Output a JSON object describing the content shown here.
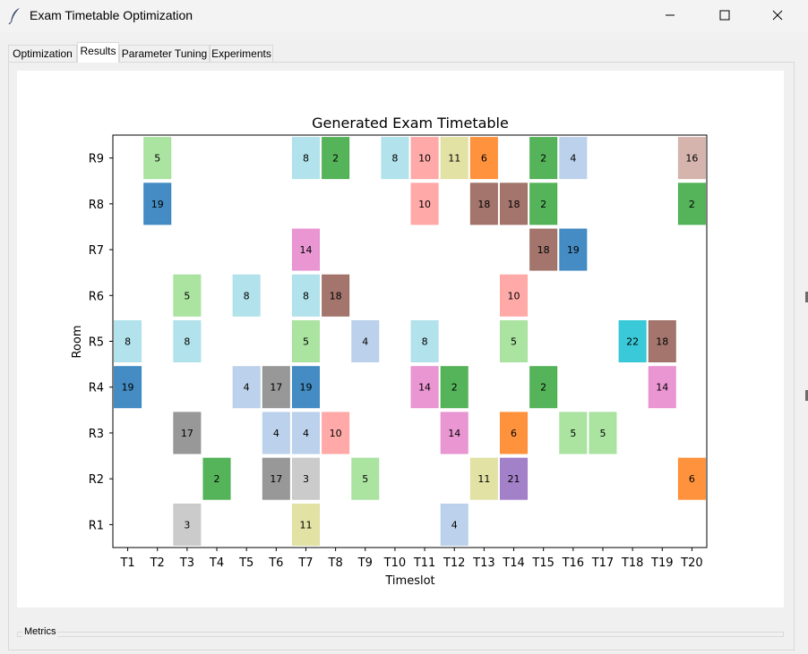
{
  "window": {
    "title": "Exam Timetable Optimization",
    "icon": "feather-icon",
    "controls": [
      "minimize-icon",
      "maximize-icon",
      "close-icon"
    ]
  },
  "tabs": [
    {
      "label": "Optimization",
      "active": false
    },
    {
      "label": "Results",
      "active": true
    },
    {
      "label": "Parameter Tuning",
      "active": false
    },
    {
      "label": "Experiments",
      "active": false
    }
  ],
  "metrics": {
    "label": "Metrics"
  },
  "chart_data": {
    "type": "heatmap",
    "title": "Generated Exam Timetable",
    "xlabel": "Timeslot",
    "ylabel": "Room",
    "x_categories": [
      "T1",
      "T2",
      "T3",
      "T4",
      "T5",
      "T6",
      "T7",
      "T8",
      "T9",
      "T10",
      "T11",
      "T12",
      "T13",
      "T14",
      "T15",
      "T16",
      "T17",
      "T18",
      "T19",
      "T20"
    ],
    "y_categories": [
      "R1",
      "R2",
      "R3",
      "R4",
      "R5",
      "R6",
      "R7",
      "R8",
      "R9"
    ],
    "grid": false,
    "cells": [
      {
        "t": "T2",
        "r": "R9",
        "exam": 5
      },
      {
        "t": "T7",
        "r": "R9",
        "exam": 8
      },
      {
        "t": "T8",
        "r": "R9",
        "exam": 2
      },
      {
        "t": "T10",
        "r": "R9",
        "exam": 8
      },
      {
        "t": "T11",
        "r": "R9",
        "exam": 10
      },
      {
        "t": "T12",
        "r": "R9",
        "exam": 11
      },
      {
        "t": "T13",
        "r": "R9",
        "exam": 6
      },
      {
        "t": "T15",
        "r": "R9",
        "exam": 2
      },
      {
        "t": "T16",
        "r": "R9",
        "exam": 4
      },
      {
        "t": "T20",
        "r": "R9",
        "exam": 16
      },
      {
        "t": "T2",
        "r": "R8",
        "exam": 19
      },
      {
        "t": "T11",
        "r": "R8",
        "exam": 10
      },
      {
        "t": "T13",
        "r": "R8",
        "exam": 18
      },
      {
        "t": "T14",
        "r": "R8",
        "exam": 18
      },
      {
        "t": "T15",
        "r": "R8",
        "exam": 2
      },
      {
        "t": "T20",
        "r": "R8",
        "exam": 2
      },
      {
        "t": "T7",
        "r": "R7",
        "exam": 14
      },
      {
        "t": "T15",
        "r": "R7",
        "exam": 18
      },
      {
        "t": "T16",
        "r": "R7",
        "exam": 19
      },
      {
        "t": "T3",
        "r": "R6",
        "exam": 5
      },
      {
        "t": "T5",
        "r": "R6",
        "exam": 8
      },
      {
        "t": "T7",
        "r": "R6",
        "exam": 8
      },
      {
        "t": "T8",
        "r": "R6",
        "exam": 18
      },
      {
        "t": "T14",
        "r": "R6",
        "exam": 10
      },
      {
        "t": "T1",
        "r": "R5",
        "exam": 8
      },
      {
        "t": "T3",
        "r": "R5",
        "exam": 8
      },
      {
        "t": "T7",
        "r": "R5",
        "exam": 5
      },
      {
        "t": "T9",
        "r": "R5",
        "exam": 4
      },
      {
        "t": "T11",
        "r": "R5",
        "exam": 8
      },
      {
        "t": "T14",
        "r": "R5",
        "exam": 5
      },
      {
        "t": "T18",
        "r": "R5",
        "exam": 22
      },
      {
        "t": "T19",
        "r": "R5",
        "exam": 18
      },
      {
        "t": "T1",
        "r": "R4",
        "exam": 19
      },
      {
        "t": "T5",
        "r": "R4",
        "exam": 4
      },
      {
        "t": "T6",
        "r": "R4",
        "exam": 17
      },
      {
        "t": "T7",
        "r": "R4",
        "exam": 19
      },
      {
        "t": "T11",
        "r": "R4",
        "exam": 14
      },
      {
        "t": "T12",
        "r": "R4",
        "exam": 2
      },
      {
        "t": "T15",
        "r": "R4",
        "exam": 2
      },
      {
        "t": "T19",
        "r": "R4",
        "exam": 14
      },
      {
        "t": "T3",
        "r": "R3",
        "exam": 17
      },
      {
        "t": "T6",
        "r": "R3",
        "exam": 4
      },
      {
        "t": "T7",
        "r": "R3",
        "exam": 4
      },
      {
        "t": "T8",
        "r": "R3",
        "exam": 10
      },
      {
        "t": "T12",
        "r": "R3",
        "exam": 14
      },
      {
        "t": "T14",
        "r": "R3",
        "exam": 6
      },
      {
        "t": "T16",
        "r": "R3",
        "exam": 5
      },
      {
        "t": "T17",
        "r": "R3",
        "exam": 5
      },
      {
        "t": "T4",
        "r": "R2",
        "exam": 2
      },
      {
        "t": "T6",
        "r": "R2",
        "exam": 17
      },
      {
        "t": "T7",
        "r": "R2",
        "exam": 3
      },
      {
        "t": "T9",
        "r": "R2",
        "exam": 5
      },
      {
        "t": "T13",
        "r": "R2",
        "exam": 11
      },
      {
        "t": "T14",
        "r": "R2",
        "exam": 21
      },
      {
        "t": "T20",
        "r": "R2",
        "exam": 6
      },
      {
        "t": "T3",
        "r": "R1",
        "exam": 3
      },
      {
        "t": "T7",
        "r": "R1",
        "exam": 11
      },
      {
        "t": "T12",
        "r": "R1",
        "exam": 4
      }
    ],
    "exam_colors": {
      "2": "#4caf50",
      "3": "#c8c8c8",
      "4": "#b8cfea",
      "5": "#a6e19c",
      "6": "#ff8c33",
      "8": "#aee0ea",
      "10": "#ffa5a3",
      "11": "#e0e0a0",
      "14": "#e890d0",
      "16": "#d4b0aa",
      "17": "#929292",
      "18": "#9e6e64",
      "19": "#3a86c0",
      "21": "#9e7ac6",
      "22": "#2ec6d6"
    }
  }
}
